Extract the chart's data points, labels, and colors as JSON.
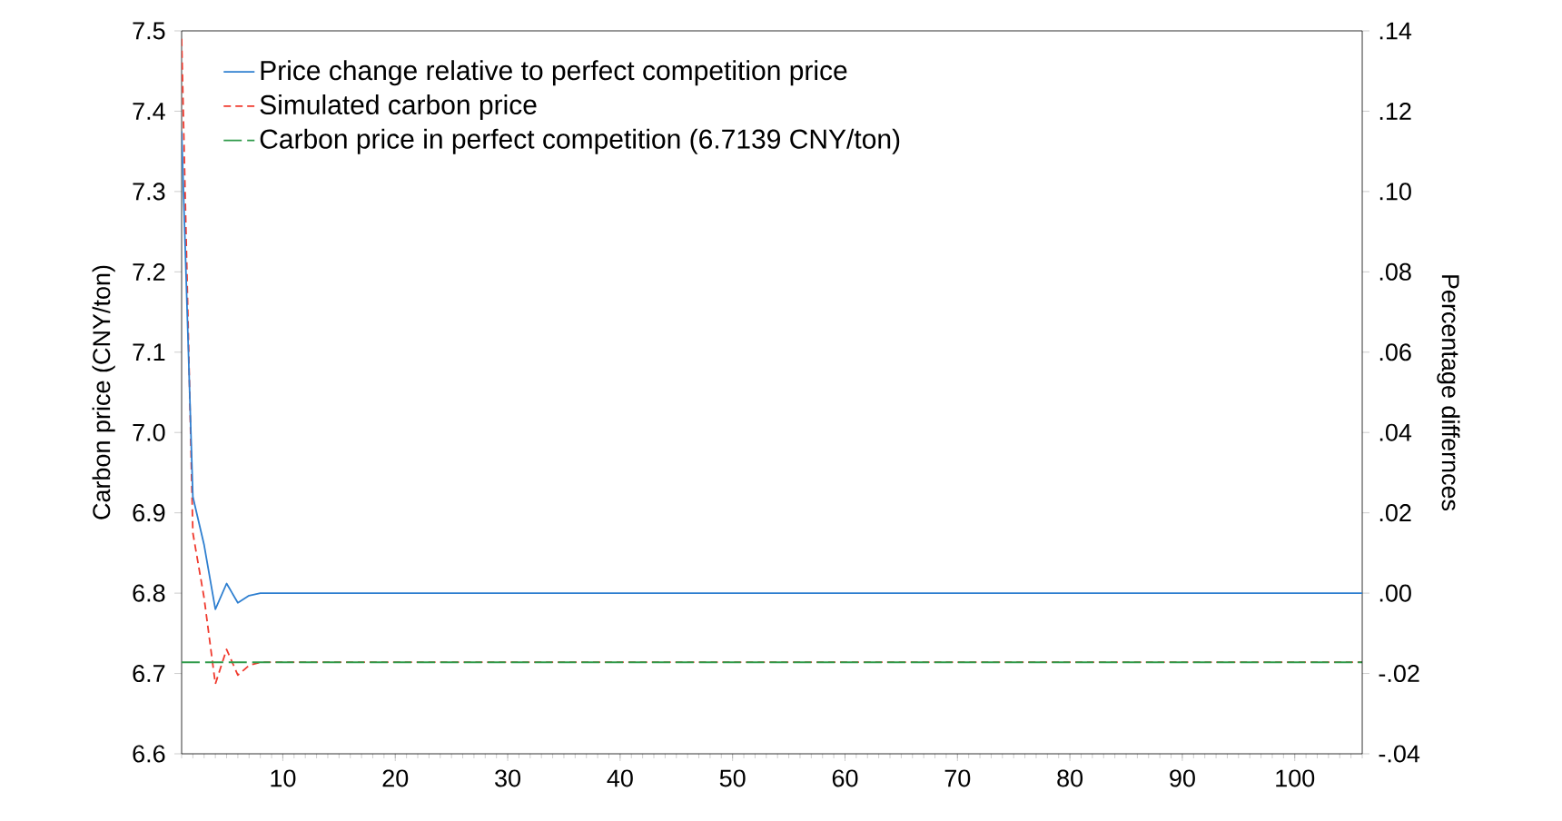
{
  "chart_data": {
    "type": "line",
    "xlabel": null,
    "ylabel": "Carbon price (CNY/ton)",
    "y2label": "Percentage differnces",
    "xlim": [
      1,
      106
    ],
    "xticks": [
      10,
      20,
      30,
      40,
      50,
      60,
      70,
      80,
      90,
      100
    ],
    "ylim": [
      6.6,
      7.5
    ],
    "yticks": [
      {
        "value": 6.6,
        "label": "6.6"
      },
      {
        "value": 6.7,
        "label": "6.7"
      },
      {
        "value": 6.8,
        "label": "6.8"
      },
      {
        "value": 6.9,
        "label": "6.9"
      },
      {
        "value": 7.0,
        "label": "7.0"
      },
      {
        "value": 7.1,
        "label": "7.1"
      },
      {
        "value": 7.2,
        "label": "7.2"
      },
      {
        "value": 7.3,
        "label": "7.3"
      },
      {
        "value": 7.4,
        "label": "7.4"
      },
      {
        "value": 7.5,
        "label": "7.5"
      }
    ],
    "y2lim": [
      -0.04,
      0.14
    ],
    "y2ticks": [
      {
        "value": -0.04,
        "label": "-.04"
      },
      {
        "value": -0.02,
        "label": "-.02"
      },
      {
        "value": 0,
        "label": ".00"
      },
      {
        "value": 0.02,
        "label": ".02"
      },
      {
        "value": 0.04,
        "label": ".04"
      },
      {
        "value": 0.06,
        "label": ".06"
      },
      {
        "value": 0.08,
        "label": ".08"
      },
      {
        "value": 0.1,
        "label": ".10"
      },
      {
        "value": 0.12,
        "label": ".12"
      },
      {
        "value": 0.14,
        "label": ".14"
      }
    ],
    "legend": "top left",
    "grid": false,
    "marker": "none",
    "series": [
      {
        "name": "Price change relative to perfect competition price",
        "color": "#2e7fd0",
        "axis": "y2",
        "line_style": "solid",
        "x": [
          1,
          2,
          3,
          4,
          5,
          6,
          7,
          8,
          9,
          10,
          106
        ],
        "values": [
          0.115,
          0.024,
          0.012,
          -0.004,
          0.0024,
          -0.0024,
          -0.0006,
          0,
          0,
          0,
          0
        ]
      },
      {
        "name": "Simulated carbon price",
        "color": "#f03a2e",
        "line_style": "dashed",
        "x": [
          1,
          2,
          3,
          4,
          5,
          6,
          7,
          8,
          9,
          10,
          106
        ],
        "values": [
          7.49,
          6.875,
          6.794,
          6.687,
          6.73,
          6.698,
          6.71,
          6.714,
          6.714,
          6.714,
          6.714
        ]
      },
      {
        "name": "Carbon price in perfect competition (6.7139 CNY/ton)",
        "color": "#2f9a4a",
        "line_style": "dashed",
        "x": [
          1,
          106
        ],
        "values": [
          6.7139,
          6.7139
        ]
      }
    ]
  }
}
